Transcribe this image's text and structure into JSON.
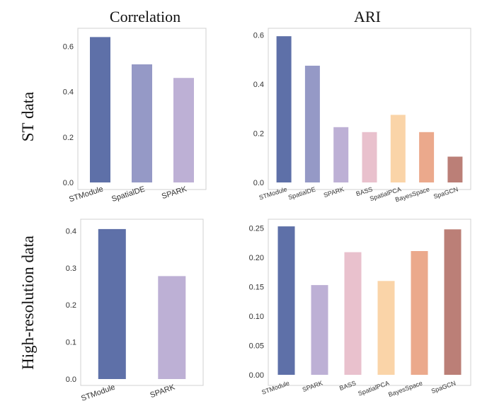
{
  "figure": {
    "column_titles": [
      "Correlation",
      "ARI"
    ],
    "row_titles": [
      "ST data",
      "High-resolution data"
    ]
  },
  "colors": {
    "STModule": "#5e70a8",
    "SpatialDE": "#9599c6",
    "SPARK": "#bdb0d5",
    "BASS": "#e9c1cd",
    "SpatialPCA": "#fad4a8",
    "BayesSpace": "#eba98c",
    "SpaGCN": "#bb7f77"
  },
  "chart_data": [
    {
      "type": "bar",
      "title": "Correlation",
      "row": "ST data",
      "categories": [
        "STModule",
        "SpatialDE",
        "SPARK"
      ],
      "values": [
        0.64,
        0.52,
        0.46
      ],
      "ylim": [
        0,
        0.66
      ],
      "yticks": [
        "0.0",
        "0.2",
        "0.4",
        "0.6"
      ],
      "ytick_values": [
        0,
        0.2,
        0.4,
        0.6
      ],
      "xlabel": "",
      "ylabel": ""
    },
    {
      "type": "bar",
      "title": "ARI",
      "row": "ST data",
      "categories": [
        "STModule",
        "SpatialDE",
        "SPARK",
        "BASS",
        "SpatialPCA",
        "BayesSpace",
        "SpaGCN"
      ],
      "values": [
        0.595,
        0.475,
        0.225,
        0.205,
        0.275,
        0.205,
        0.105
      ],
      "ylim": [
        0,
        0.61
      ],
      "yticks": [
        "0.0",
        "0.2",
        "0.4",
        "0.6"
      ],
      "ytick_values": [
        0,
        0.2,
        0.4,
        0.6
      ],
      "xlabel": "",
      "ylabel": ""
    },
    {
      "type": "bar",
      "title": "Correlation",
      "row": "High-resolution data",
      "categories": [
        "STModule",
        "SPARK"
      ],
      "values": [
        0.405,
        0.278
      ],
      "ylim": [
        0,
        0.42
      ],
      "yticks": [
        "0.0",
        "0.1",
        "0.2",
        "0.3",
        "0.4"
      ],
      "ytick_values": [
        0,
        0.1,
        0.2,
        0.3,
        0.4
      ],
      "xlabel": "",
      "ylabel": ""
    },
    {
      "type": "bar",
      "title": "ARI",
      "row": "High-resolution data",
      "categories": [
        "STModule",
        "SPARK",
        "BASS",
        "SpatialPCA",
        "BayesSpace",
        "SpaGCN"
      ],
      "values": [
        0.253,
        0.153,
        0.209,
        0.16,
        0.211,
        0.248
      ],
      "ylim": [
        0,
        0.258
      ],
      "yticks": [
        "0.00",
        "0.05",
        "0.10",
        "0.15",
        "0.20",
        "0.25"
      ],
      "ytick_values": [
        0,
        0.05,
        0.1,
        0.15,
        0.2,
        0.25
      ],
      "xlabel": "",
      "ylabel": ""
    }
  ]
}
